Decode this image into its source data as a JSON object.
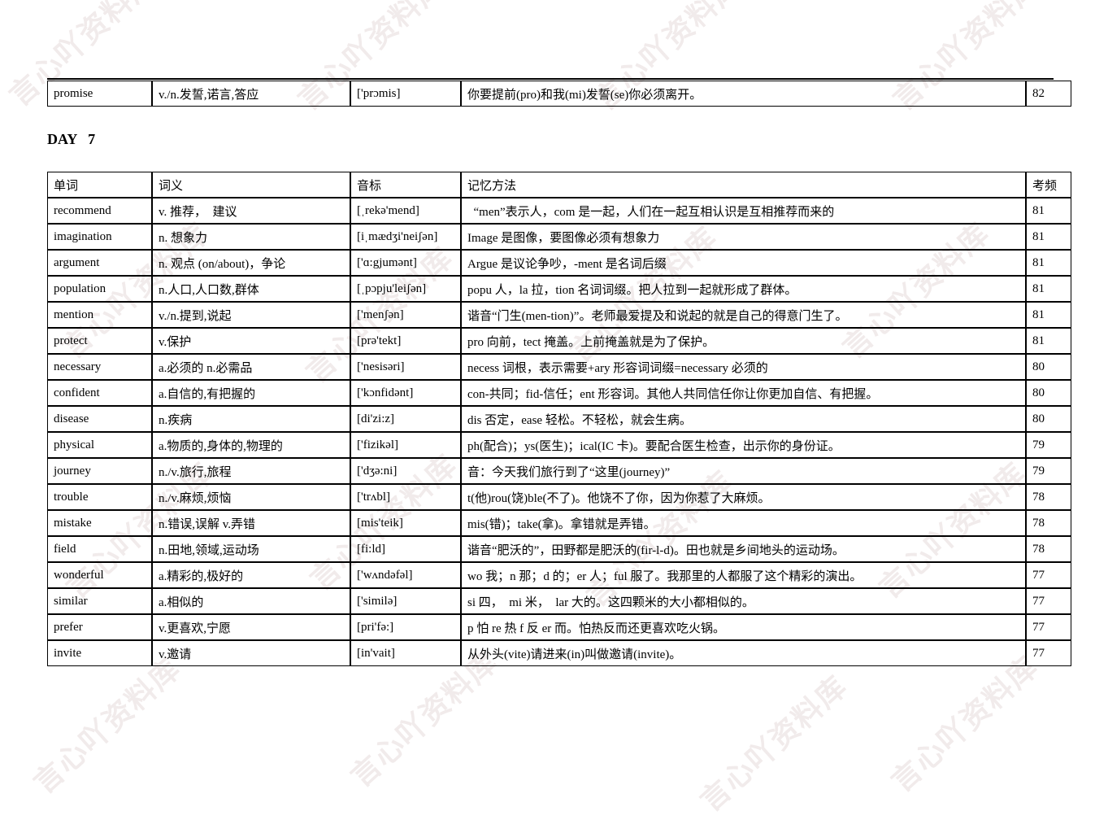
{
  "watermark": {
    "text": "言心吖资料库",
    "color": "#f1ebeb"
  },
  "promise_row": {
    "word": "promise",
    "meaning": "v./n.发誓,诺言,答应",
    "phonetic": "['prɔmis]",
    "method": "你要提前(pro)和我(mi)发誓(se)你必须离开。",
    "freq": "82"
  },
  "section_title": "DAY   7",
  "table": {
    "headers": [
      "单词",
      "词义",
      "音标",
      "记忆方法",
      "考频"
    ],
    "rows": [
      {
        "word": "recommend",
        "meaning": "v. 推荐，  建议",
        "phonetic": "[ˌrekə'mend]",
        "method": "  “men”表示人，com 是一起，人们在一起互相认识是互相推荐而来的",
        "freq": "81"
      },
      {
        "word": "imagination",
        "meaning": "n. 想象力",
        "phonetic": "[iˌmædʒi'neiʃən]",
        "method": "Image 是图像，要图像必须有想象力",
        "freq": "81"
      },
      {
        "word": "argument",
        "meaning": "n. 观点 (on/about)，争论",
        "phonetic": "['ɑ:gjumənt]",
        "method": "Argue 是议论争吵，-ment 是名词后缀",
        "freq": "81"
      },
      {
        "word": "population",
        "meaning": "n.人口,人口数,群体",
        "phonetic": "[ˌpɔpju'leiʃən]",
        "method": "popu 人，la 拉，tion 名词词缀。把人拉到一起就形成了群体。",
        "freq": "81"
      },
      {
        "word": "mention",
        "meaning": "v./n.提到,说起",
        "phonetic": "['menʃən]",
        "method": "谐音“门生(men-tion)”。老师最爱提及和说起的就是自己的得意门生了。",
        "freq": "81"
      },
      {
        "word": "protect",
        "meaning": "v.保护",
        "phonetic": "[prə'tekt]",
        "method": "pro 向前，tect 掩盖。上前掩盖就是为了保护。",
        "freq": "81"
      },
      {
        "word": "necessary",
        "meaning": "a.必须的 n.必需品",
        "phonetic": "['nesisəri]",
        "method": "necess 词根，表示需要+ary 形容词词缀=necessary 必须的",
        "freq": "80"
      },
      {
        "word": "confident",
        "meaning": "a.自信的,有把握的",
        "phonetic": "['kɔnfidənt]",
        "method": "con-共同；fid-信任；ent 形容词。其他人共同信任你让你更加自信、有把握。",
        "freq": "80"
      },
      {
        "word": "disease",
        "meaning": "n.疾病",
        "phonetic": "[di'zi:z]",
        "method": "dis 否定，ease 轻松。不轻松，就会生病。",
        "freq": "80"
      },
      {
        "word": "physical",
        "meaning": "a.物质的,身体的,物理的",
        "phonetic": "['fizikəl]",
        "method": "ph(配合)；ys(医生)；ical(IC 卡)。要配合医生检查，出示你的身份证。",
        "freq": "79"
      },
      {
        "word": "journey",
        "meaning": "n./v.旅行,旅程",
        "phonetic": "['dʒə:ni]",
        "method": "音：今天我们旅行到了“这里(journey)”",
        "freq": "79"
      },
      {
        "word": "trouble",
        "meaning": "n./v.麻烦,烦恼",
        "phonetic": "['trʌbl]",
        "method": "t(他)rou(饶)ble(不了)。他饶不了你，因为你惹了大麻烦。",
        "freq": "78"
      },
      {
        "word": "mistake",
        "meaning": "n.错误,误解 v.弄错",
        "phonetic": "[mis'teik]",
        "method": "mis(错)；take(拿)。拿错就是弄错。",
        "freq": "78"
      },
      {
        "word": "field",
        "meaning": "n.田地,领域,运动场",
        "phonetic": "[fi:ld]",
        "method": "谐音“肥沃的”，田野都是肥沃的(fir-l-d)。田也就是乡间地头的运动场。",
        "freq": "78"
      },
      {
        "word": "wonderful",
        "meaning": "a.精彩的,极好的",
        "phonetic": "['wʌndəfəl]",
        "method": "wo 我；n 那；d 的；er 人；ful 服了。我那里的人都服了这个精彩的演出。",
        "freq": "77"
      },
      {
        "word": "similar",
        "meaning": "a.相似的",
        "phonetic": "['similə]",
        "method": "si 四，  mi 米，  lar 大的。这四颗米的大小都相似的。",
        "freq": "77"
      },
      {
        "word": "prefer",
        "meaning": "v.更喜欢,宁愿",
        "phonetic": "[pri'fə:]",
        "method": "p 怕 re 热 f 反 er 而。怕热反而还更喜欢吃火锅。",
        "freq": "77"
      },
      {
        "word": "invite",
        "meaning": "v.邀请",
        "phonetic": "[in'vait]",
        "method": "从外头(vite)请进来(in)叫做邀请(invite)。",
        "freq": "77"
      }
    ]
  }
}
